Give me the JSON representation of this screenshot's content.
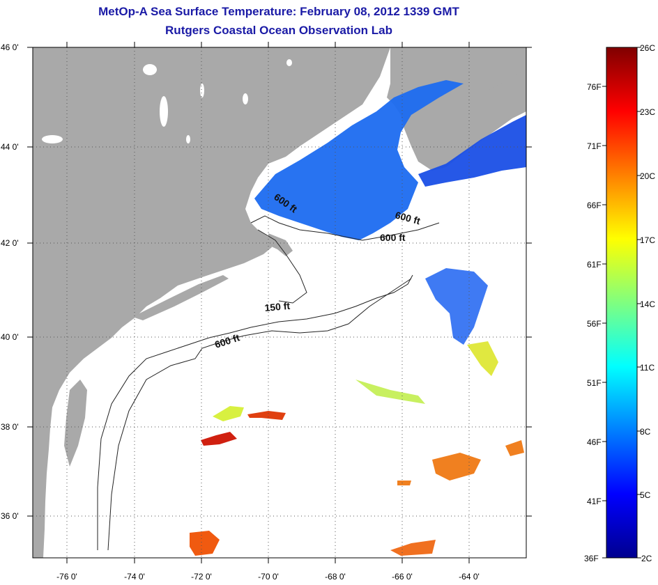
{
  "title": "MetOp-A Sea Surface Temperature:  February 08, 2012 1339 GMT",
  "subtitle": "Rutgers Coastal Ocean Observation Lab",
  "map": {
    "lon_range": [
      -77,
      -63
    ],
    "lat_range": [
      35,
      46
    ],
    "lon_ticks": [
      "-76 0'",
      "-74 0'",
      "-72 0'",
      "-70 0'",
      "-68 0'",
      "-66 0'",
      "-64 0'"
    ],
    "lat_ticks": [
      "46 0'",
      "44 0'",
      "42 0'",
      "40 0'",
      "38 0'",
      "36 0'"
    ],
    "land_color": "#a9a9a9",
    "cloud_color": "#ffffff",
    "depth_contours": [
      "150 ft",
      "600 ft"
    ],
    "depth_labels": [
      "600 ft",
      "600 ft",
      "600 ft",
      "150 ft",
      "600 ft"
    ]
  },
  "colorbar": {
    "celsius_labels": [
      "26C",
      "23C",
      "20C",
      "17C",
      "14C",
      "11C",
      "8C",
      "5C",
      "2C"
    ],
    "fahrenheit_labels": [
      "76F",
      "71F",
      "66F",
      "61F",
      "56F",
      "51F",
      "46F",
      "41F",
      "36F"
    ],
    "range_c": [
      2,
      26
    ],
    "colormap": "jet"
  }
}
